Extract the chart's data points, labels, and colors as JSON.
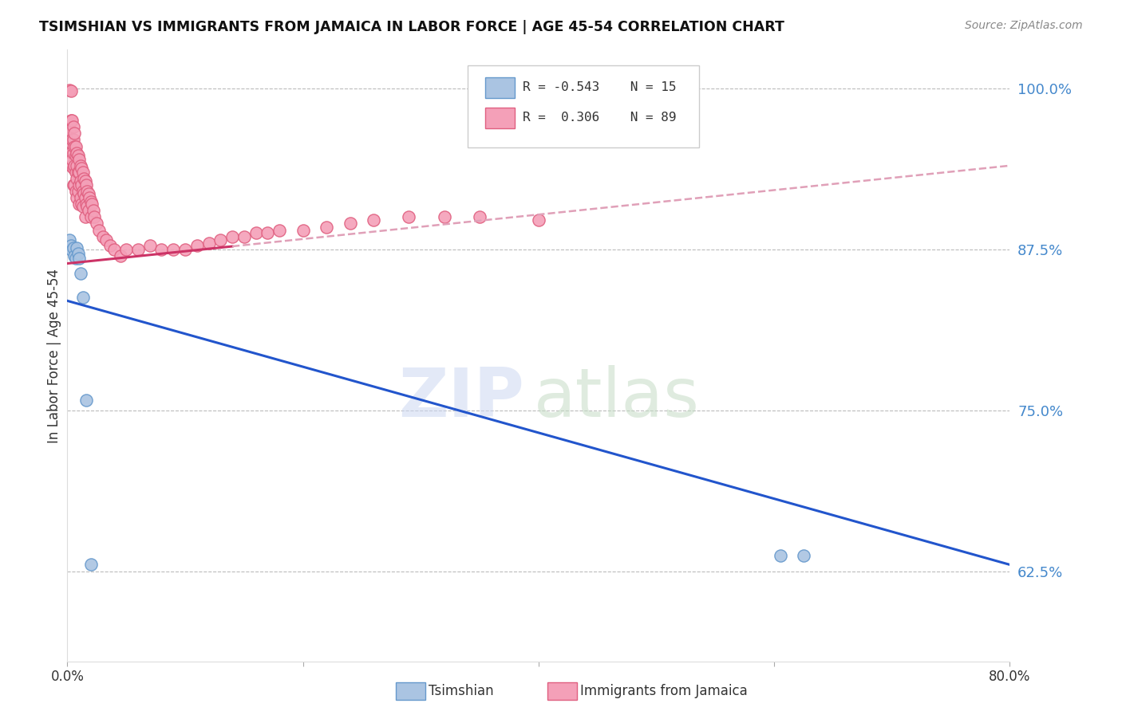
{
  "title": "TSIMSHIAN VS IMMIGRANTS FROM JAMAICA IN LABOR FORCE | AGE 45-54 CORRELATION CHART",
  "source": "Source: ZipAtlas.com",
  "ylabel": "In Labor Force | Age 45-54",
  "y_ticks": [
    0.625,
    0.75,
    0.875,
    1.0
  ],
  "y_tick_labels": [
    "62.5%",
    "75.0%",
    "87.5%",
    "100.0%"
  ],
  "x_ticks": [
    0.0,
    0.2,
    0.4,
    0.6,
    0.8
  ],
  "x_tick_labels": [
    "0.0%",
    "",
    "",
    "",
    "80.0%"
  ],
  "x_range": [
    0.0,
    0.8
  ],
  "y_range": [
    0.555,
    1.03
  ],
  "tsimshian_color": "#aac4e2",
  "tsimshian_edge_color": "#6699cc",
  "jamaica_color": "#f4a0b8",
  "jamaica_edge_color": "#e06080",
  "trend_blue_color": "#2255cc",
  "trend_pink_color": "#cc3366",
  "trend_pink_dash_color": "#e0a0b8",
  "grid_color": "#bbbbbb",
  "watermark_zip_color": "#c8d8f0",
  "watermark_atlas_color": "#c8dfc8",
  "tsimshian_x": [
    0.002,
    0.003,
    0.004,
    0.005,
    0.006,
    0.007,
    0.008,
    0.009,
    0.01,
    0.011,
    0.013,
    0.016,
    0.02,
    0.605,
    0.625
  ],
  "tsimshian_y": [
    0.882,
    0.878,
    0.874,
    0.876,
    0.87,
    0.868,
    0.876,
    0.872,
    0.868,
    0.856,
    0.838,
    0.758,
    0.63,
    0.637,
    0.637
  ],
  "jamaica_x": [
    0.002,
    0.002,
    0.003,
    0.003,
    0.003,
    0.003,
    0.003,
    0.004,
    0.004,
    0.004,
    0.005,
    0.005,
    0.005,
    0.005,
    0.005,
    0.006,
    0.006,
    0.006,
    0.006,
    0.007,
    0.007,
    0.007,
    0.007,
    0.008,
    0.008,
    0.008,
    0.008,
    0.009,
    0.009,
    0.009,
    0.01,
    0.01,
    0.01,
    0.01,
    0.011,
    0.011,
    0.011,
    0.012,
    0.012,
    0.012,
    0.013,
    0.013,
    0.013,
    0.014,
    0.014,
    0.015,
    0.015,
    0.015,
    0.016,
    0.016,
    0.017,
    0.017,
    0.018,
    0.018,
    0.019,
    0.02,
    0.02,
    0.021,
    0.022,
    0.023,
    0.025,
    0.027,
    0.03,
    0.033,
    0.036,
    0.04,
    0.045,
    0.05,
    0.06,
    0.07,
    0.08,
    0.09,
    0.1,
    0.11,
    0.12,
    0.13,
    0.14,
    0.15,
    0.16,
    0.17,
    0.18,
    0.2,
    0.22,
    0.24,
    0.26,
    0.29,
    0.32,
    0.35,
    0.4
  ],
  "jamaica_y": [
    0.999,
    0.968,
    0.998,
    0.975,
    0.958,
    0.95,
    0.94,
    0.975,
    0.96,
    0.945,
    0.97,
    0.96,
    0.95,
    0.938,
    0.925,
    0.965,
    0.955,
    0.94,
    0.925,
    0.955,
    0.948,
    0.935,
    0.92,
    0.95,
    0.94,
    0.93,
    0.915,
    0.948,
    0.935,
    0.92,
    0.945,
    0.935,
    0.925,
    0.91,
    0.94,
    0.928,
    0.915,
    0.938,
    0.925,
    0.91,
    0.935,
    0.92,
    0.908,
    0.93,
    0.918,
    0.928,
    0.915,
    0.9,
    0.925,
    0.91,
    0.92,
    0.908,
    0.918,
    0.905,
    0.915,
    0.912,
    0.9,
    0.91,
    0.905,
    0.9,
    0.895,
    0.89,
    0.885,
    0.882,
    0.878,
    0.875,
    0.87,
    0.875,
    0.875,
    0.878,
    0.875,
    0.875,
    0.875,
    0.878,
    0.88,
    0.882,
    0.885,
    0.885,
    0.888,
    0.888,
    0.89,
    0.89,
    0.892,
    0.895,
    0.898,
    0.9,
    0.9,
    0.9,
    0.898
  ],
  "pink_trend_x_start": 0.0,
  "pink_trend_x_solid_end": 0.14,
  "pink_trend_x_dash_end": 0.8,
  "pink_trend_y_at_0": 0.864,
  "pink_trend_y_at_80": 0.94,
  "blue_trend_y_at_0": 0.835,
  "blue_trend_y_at_80": 0.63,
  "marker_size": 120
}
